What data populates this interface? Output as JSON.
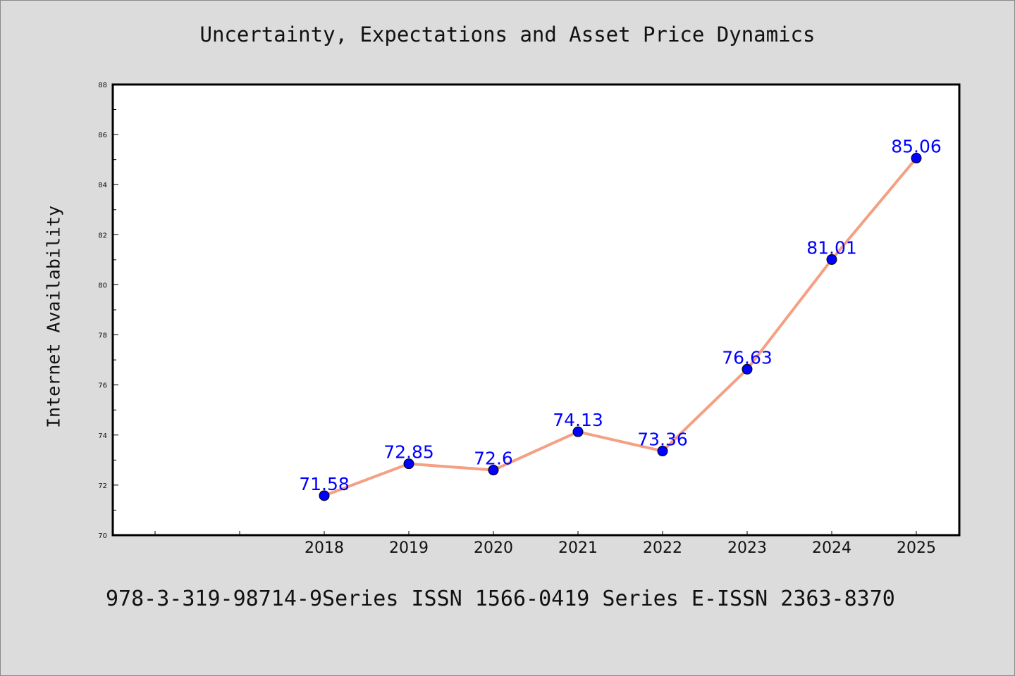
{
  "colors": {
    "background": "#dcdcdc",
    "plot_background": "#ffffff",
    "line": "#f4a083",
    "marker": "#0000ff",
    "data_label": "#0000ff"
  },
  "footer_text": "978-3-319-98714-9Series ISSN 1566-0419 Series E-ISSN 2363-8370",
  "chart_data": {
    "type": "line",
    "title": "Uncertainty, Expectations and Asset Price Dynamics",
    "xlabel": "",
    "ylabel": "Internet Availability",
    "x": [
      "2018",
      "2019",
      "2020",
      "2021",
      "2022",
      "2023",
      "2024",
      "2025"
    ],
    "series": [
      {
        "values": [
          71.58,
          72.85,
          72.6,
          74.13,
          73.36,
          76.63,
          81.01,
          85.06
        ]
      }
    ],
    "data_labels": [
      "71.58",
      "72.85",
      "72.6",
      "74.13",
      "73.36",
      "76.63",
      "81.01",
      "85.06"
    ],
    "ylim": [
      70,
      88
    ],
    "yticks": [
      70,
      72,
      74,
      76,
      78,
      80,
      82,
      84,
      86,
      88
    ],
    "grid": false,
    "legend": "none"
  }
}
